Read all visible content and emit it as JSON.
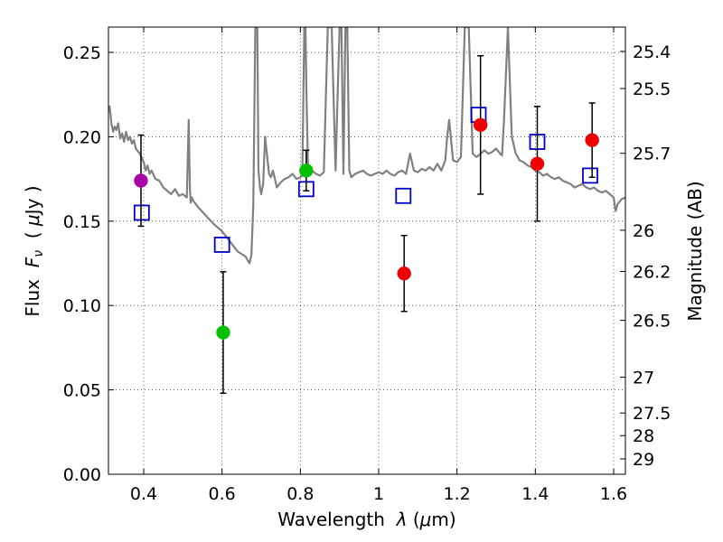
{
  "chart_data": {
    "type": "scatter",
    "xlabel": "Wavelength",
    "xlabel_symbol": "λ",
    "xlabel_unit_open": " (",
    "xlabel_unit_mu": "μ",
    "xlabel_unit_rest": "m)",
    "ylabel": "Flux",
    "ylabel_symbol": "F",
    "ylabel_subscript": "ν",
    "ylabel_unit_open": "  ( ",
    "ylabel_unit_mu": "μ",
    "ylabel_unit_rest": "Jy )",
    "y2label": "Magnitude (AB)",
    "xlim": [
      0.31,
      1.63
    ],
    "ylim": [
      0.0,
      0.265
    ],
    "grid": true,
    "x_ticks": [
      {
        "value": 0.4,
        "label": "0.4"
      },
      {
        "value": 0.6,
        "label": "0.6"
      },
      {
        "value": 0.8,
        "label": "0.8"
      },
      {
        "value": 1.0,
        "label": "1"
      },
      {
        "value": 1.2,
        "label": "1.2"
      },
      {
        "value": 1.4,
        "label": "1.4"
      },
      {
        "value": 1.6,
        "label": "1.6"
      }
    ],
    "y_ticks": [
      {
        "value": 0.0,
        "label": "0.00"
      },
      {
        "value": 0.05,
        "label": "0.05"
      },
      {
        "value": 0.1,
        "label": "0.10"
      },
      {
        "value": 0.15,
        "label": "0.15"
      },
      {
        "value": 0.2,
        "label": "0.20"
      },
      {
        "value": 0.25,
        "label": "0.25"
      }
    ],
    "y2_ticks": [
      {
        "flux": 0.2506,
        "label": "25.4"
      },
      {
        "flux": 0.2286,
        "label": "25.5"
      },
      {
        "flux": 0.1902,
        "label": "25.7"
      },
      {
        "flux": 0.1446,
        "label": "26"
      },
      {
        "flux": 0.1202,
        "label": "26.2"
      },
      {
        "flux": 0.0912,
        "label": "26.5"
      },
      {
        "flux": 0.0575,
        "label": "27"
      },
      {
        "flux": 0.0363,
        "label": "27.5"
      },
      {
        "flux": 0.0229,
        "label": "28"
      },
      {
        "flux": 0.0091,
        "label": "29"
      }
    ],
    "series": [
      {
        "name": "template spectrum",
        "kind": "line",
        "color": "#808080",
        "x": [
          0.31,
          0.313,
          0.318,
          0.322,
          0.326,
          0.33,
          0.335,
          0.34,
          0.345,
          0.35,
          0.355,
          0.36,
          0.365,
          0.37,
          0.375,
          0.38,
          0.39,
          0.4,
          0.405,
          0.41,
          0.415,
          0.42,
          0.43,
          0.44,
          0.45,
          0.46,
          0.47,
          0.48,
          0.49,
          0.5,
          0.51,
          0.515,
          0.518,
          0.52,
          0.523,
          0.527,
          0.54,
          0.56,
          0.58,
          0.6,
          0.62,
          0.64,
          0.66,
          0.67,
          0.675,
          0.68,
          0.685,
          0.687,
          0.69,
          0.693,
          0.697,
          0.7,
          0.705,
          0.71,
          0.72,
          0.725,
          0.73,
          0.735,
          0.74,
          0.75,
          0.76,
          0.77,
          0.78,
          0.79,
          0.8,
          0.805,
          0.81,
          0.813,
          0.816,
          0.82,
          0.83,
          0.84,
          0.85,
          0.86,
          0.87,
          0.88,
          0.89,
          0.9,
          0.905,
          0.91,
          0.915,
          0.92,
          0.925,
          0.93,
          0.94,
          0.95,
          0.96,
          0.97,
          0.98,
          0.99,
          1.0,
          1.01,
          1.02,
          1.03,
          1.04,
          1.05,
          1.06,
          1.07,
          1.08,
          1.09,
          1.1,
          1.11,
          1.12,
          1.13,
          1.14,
          1.15,
          1.16,
          1.17,
          1.175,
          1.18,
          1.19,
          1.2,
          1.21,
          1.22,
          1.23,
          1.24,
          1.25,
          1.26,
          1.27,
          1.28,
          1.29,
          1.3,
          1.31,
          1.315,
          1.32,
          1.33,
          1.34,
          1.35,
          1.36,
          1.37,
          1.38,
          1.39,
          1.4,
          1.41,
          1.42,
          1.43,
          1.44,
          1.45,
          1.46,
          1.47,
          1.48,
          1.49,
          1.5,
          1.51,
          1.52,
          1.53,
          1.54,
          1.55,
          1.56,
          1.57,
          1.58,
          1.59,
          1.6,
          1.605,
          1.61,
          1.62,
          1.63
        ],
        "y": [
          0.215,
          0.218,
          0.207,
          0.203,
          0.206,
          0.204,
          0.208,
          0.199,
          0.202,
          0.197,
          0.203,
          0.198,
          0.2,
          0.196,
          0.198,
          0.193,
          0.19,
          0.185,
          0.18,
          0.183,
          0.178,
          0.18,
          0.175,
          0.174,
          0.17,
          0.168,
          0.166,
          0.169,
          0.165,
          0.166,
          0.164,
          0.21,
          0.17,
          0.161,
          0.164,
          0.162,
          0.158,
          0.153,
          0.148,
          0.144,
          0.138,
          0.132,
          0.129,
          0.125,
          0.13,
          0.16,
          0.265,
          0.265,
          0.265,
          0.18,
          0.17,
          0.166,
          0.172,
          0.2,
          0.178,
          0.176,
          0.18,
          0.175,
          0.17,
          0.173,
          0.175,
          0.176,
          0.178,
          0.175,
          0.176,
          0.177,
          0.265,
          0.265,
          0.22,
          0.177,
          0.18,
          0.178,
          0.177,
          0.179,
          0.265,
          0.265,
          0.18,
          0.265,
          0.265,
          0.178,
          0.265,
          0.265,
          0.18,
          0.176,
          0.178,
          0.179,
          0.18,
          0.178,
          0.177,
          0.178,
          0.179,
          0.178,
          0.18,
          0.178,
          0.177,
          0.179,
          0.18,
          0.178,
          0.19,
          0.18,
          0.179,
          0.181,
          0.18,
          0.182,
          0.18,
          0.184,
          0.18,
          0.186,
          0.2,
          0.21,
          0.186,
          0.185,
          0.188,
          0.265,
          0.265,
          0.19,
          0.188,
          0.19,
          0.192,
          0.19,
          0.191,
          0.193,
          0.19,
          0.189,
          0.21,
          0.265,
          0.2,
          0.19,
          0.186,
          0.185,
          0.183,
          0.182,
          0.18,
          0.179,
          0.177,
          0.178,
          0.176,
          0.175,
          0.176,
          0.174,
          0.173,
          0.172,
          0.17,
          0.171,
          0.172,
          0.17,
          0.169,
          0.17,
          0.168,
          0.167,
          0.168,
          0.166,
          0.164,
          0.156,
          0.16,
          0.163,
          0.164
        ]
      },
      {
        "name": "model fluxes",
        "kind": "open-square",
        "color": "#0000cc",
        "x": [
          0.395,
          0.6,
          0.815,
          1.063,
          1.255,
          1.405,
          1.54
        ],
        "y": [
          0.155,
          0.136,
          0.169,
          0.165,
          0.213,
          0.197,
          0.177
        ]
      },
      {
        "name": "observed green",
        "kind": "filled-circle",
        "color": "#00c000",
        "x": [
          0.603,
          0.815
        ],
        "y": [
          0.084,
          0.18
        ],
        "yerr": [
          0.036,
          0.012
        ]
      },
      {
        "name": "observed red",
        "kind": "filled-circle",
        "color": "#ee0000",
        "x": [
          1.065,
          1.26,
          1.405,
          1.545
        ],
        "y": [
          0.119,
          0.207,
          0.184,
          0.198
        ],
        "yerr": [
          0.0225,
          0.041,
          0.034,
          0.022
        ]
      },
      {
        "name": "observed purple",
        "kind": "filled-circle",
        "color": "#aa00aa",
        "x": [
          0.393
        ],
        "y": [
          0.174
        ],
        "yerr": [
          0.027
        ]
      }
    ]
  }
}
